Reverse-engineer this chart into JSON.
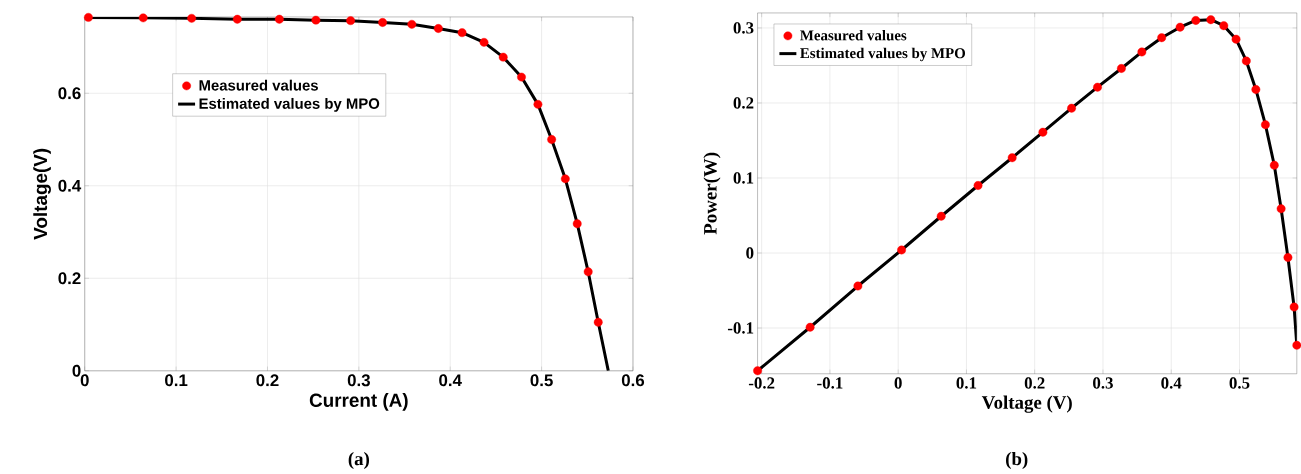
{
  "chart_data": [
    {
      "type": "scatter",
      "xlabel": "Current (A)",
      "ylabel": "Voltage(V)",
      "annotations": [
        "(a)"
      ],
      "xlim": [
        0,
        0.6
      ],
      "ylim": [
        0,
        0.765
      ],
      "xticks": [
        0,
        0.1,
        0.2,
        0.3,
        0.4,
        0.5,
        0.6
      ],
      "yticks": [
        0,
        0.2,
        0.4,
        0.6
      ],
      "grid": true,
      "legend": "left",
      "series": [
        {
          "name": "Measured values",
          "type": "scatter",
          "marker": "circle",
          "color": "#ff0000",
          "x": [
            0.004,
            0.064,
            0.117,
            0.167,
            0.213,
            0.253,
            0.291,
            0.326,
            0.358,
            0.387,
            0.413,
            0.437,
            0.458,
            0.478,
            0.496,
            0.511,
            0.526,
            0.539,
            0.551,
            0.562
          ],
          "values": [
            0.764,
            0.763,
            0.762,
            0.76,
            0.76,
            0.758,
            0.757,
            0.753,
            0.749,
            0.74,
            0.731,
            0.71,
            0.678,
            0.635,
            0.576,
            0.5,
            0.415,
            0.318,
            0.214,
            0.105
          ]
        },
        {
          "name": "Estimated values by MPO",
          "type": "line",
          "line_style": "solid",
          "color": "#000000",
          "x": [
            0,
            0.064,
            0.117,
            0.167,
            0.213,
            0.253,
            0.291,
            0.326,
            0.358,
            0.387,
            0.413,
            0.437,
            0.458,
            0.478,
            0.496,
            0.511,
            0.526,
            0.539,
            0.551,
            0.562,
            0.573
          ],
          "values": [
            0.764,
            0.763,
            0.762,
            0.76,
            0.76,
            0.758,
            0.757,
            0.753,
            0.749,
            0.74,
            0.731,
            0.71,
            0.678,
            0.635,
            0.576,
            0.5,
            0.415,
            0.318,
            0.214,
            0.105,
            0
          ]
        }
      ]
    },
    {
      "type": "scatter",
      "xlabel": "Voltage (V)",
      "ylabel": "Power(W)",
      "annotations": [
        "(b)"
      ],
      "xlim": [
        -0.206,
        0.584
      ],
      "ylim": [
        -0.161,
        0.32
      ],
      "xticks": [
        -0.2,
        -0.1,
        0,
        0.1,
        0.2,
        0.3,
        0.4,
        0.5
      ],
      "yticks": [
        -0.1,
        0,
        0.1,
        0.2,
        0.3
      ],
      "grid": true,
      "legend": "top left",
      "series": [
        {
          "name": "Measured values",
          "type": "scatter",
          "marker": "circle",
          "color": "#ff0000",
          "x": [
            -0.206,
            -0.129,
            -0.059,
            0.005,
            0.063,
            0.117,
            0.167,
            0.212,
            0.254,
            0.292,
            0.327,
            0.357,
            0.386,
            0.413,
            0.436,
            0.458,
            0.477,
            0.495,
            0.51,
            0.524,
            0.538,
            0.551,
            0.561,
            0.571,
            0.58,
            0.584
          ],
          "values": [
            -0.157,
            -0.099,
            -0.044,
            0.004,
            0.049,
            0.09,
            0.127,
            0.161,
            0.193,
            0.221,
            0.246,
            0.268,
            0.287,
            0.301,
            0.31,
            0.311,
            0.303,
            0.285,
            0.256,
            0.218,
            0.171,
            0.117,
            0.059,
            -0.006,
            -0.072,
            -0.123
          ]
        },
        {
          "name": "Estimated values by MPO",
          "type": "line",
          "line_style": "solid",
          "color": "#000000",
          "x": [
            -0.206,
            -0.129,
            -0.059,
            0.005,
            0.063,
            0.117,
            0.167,
            0.212,
            0.254,
            0.292,
            0.327,
            0.357,
            0.386,
            0.413,
            0.436,
            0.458,
            0.477,
            0.495,
            0.51,
            0.524,
            0.538,
            0.551,
            0.561,
            0.571,
            0.58,
            0.584
          ],
          "values": [
            -0.157,
            -0.099,
            -0.044,
            0.004,
            0.049,
            0.09,
            0.127,
            0.161,
            0.193,
            0.221,
            0.246,
            0.268,
            0.287,
            0.301,
            0.31,
            0.311,
            0.303,
            0.285,
            0.256,
            0.218,
            0.171,
            0.117,
            0.059,
            -0.006,
            -0.072,
            -0.123
          ]
        }
      ]
    }
  ]
}
